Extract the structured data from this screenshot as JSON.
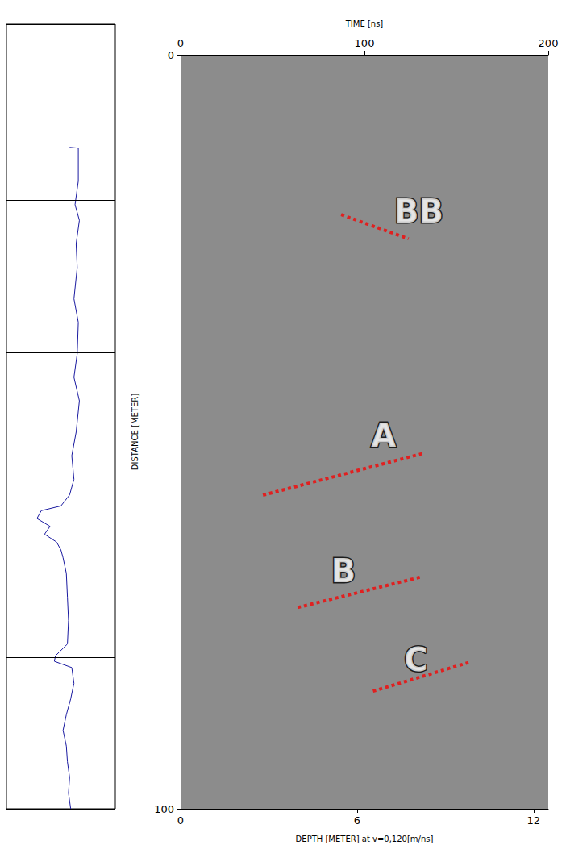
{
  "chart_data": [
    {
      "type": "line",
      "x": [
        58,
        66,
        66,
        63,
        67,
        64,
        65,
        62,
        66,
        65,
        62,
        67,
        64,
        60,
        62,
        58,
        50,
        32,
        28,
        40,
        35,
        46,
        50,
        52,
        55,
        56,
        57,
        56,
        45,
        44,
        60,
        62,
        59,
        55,
        52,
        55,
        56,
        58,
        57,
        59
      ],
      "y": [
        15.7,
        15.8,
        20,
        23,
        25,
        28,
        31,
        35,
        38,
        42,
        45,
        48,
        52,
        55,
        58,
        60,
        61.4,
        62,
        63,
        64,
        65,
        66,
        67,
        68,
        70,
        73,
        76,
        79,
        80.5,
        81.2,
        82,
        84,
        86,
        88,
        90,
        92,
        94,
        96,
        98,
        100
      ],
      "color": "#1a1aa0",
      "xlim": [
        0,
        100
      ],
      "ylim": [
        0,
        100
      ],
      "yticks": [
        0,
        22.4,
        41.9,
        61.4,
        80.7,
        100
      ],
      "grid": true,
      "tick_labels": false
    },
    {
      "type": "line",
      "xlabel": "DEPTH [METER] at v=0,120[m/ns]",
      "xlim": [
        0,
        12.5
      ],
      "xticks": [
        0,
        6,
        12
      ],
      "x2label": "TIME [ns]",
      "x2lim": [
        0,
        200
      ],
      "x2ticks": [
        0,
        100,
        200
      ],
      "ylabel": "DISTANCE [METER]",
      "ylim": [
        0,
        100
      ],
      "yticks": [
        0,
        100
      ],
      "color": "#e02020",
      "line_style": "dotted",
      "annotations": [
        {
          "label": "BB",
          "x": [
            5.46,
            7.75
          ],
          "y": [
            21.2,
            24.4
          ],
          "label_x": 8.1,
          "label_y": 20.8
        },
        {
          "label": "A",
          "x": [
            2.8,
            8.31
          ],
          "y": [
            58.4,
            52.8
          ],
          "label_x": 6.9,
          "label_y": 50.5
        },
        {
          "label": "B",
          "x": [
            3.98,
            8.23
          ],
          "y": [
            73.3,
            69.2
          ],
          "label_x": 5.54,
          "label_y": 68.4
        },
        {
          "label": "C",
          "x": [
            6.54,
            9.79
          ],
          "y": [
            84.4,
            80.6
          ],
          "label_x": 8.0,
          "label_y": 80.2
        }
      ]
    }
  ]
}
